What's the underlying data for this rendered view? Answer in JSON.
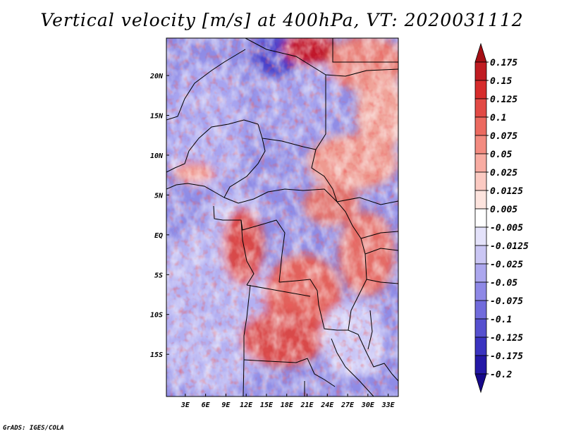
{
  "title": "Vertical velocity [m/s] at 400hPa, VT: 2020031112",
  "credit": "GrADS: IGES/COLA",
  "map": {
    "lat_labels": [
      "20N",
      "15N",
      "10N",
      "5N",
      "EQ",
      "5S",
      "10S",
      "15S"
    ],
    "lat_values": [
      20,
      15,
      10,
      5,
      0,
      -5,
      -10,
      -15
    ],
    "lon_labels": [
      "3E",
      "6E",
      "9E",
      "12E",
      "15E",
      "18E",
      "21E",
      "24E",
      "27E",
      "30E",
      "33E"
    ],
    "lon_values": [
      3,
      6,
      9,
      12,
      15,
      18,
      21,
      24,
      27,
      30,
      33
    ]
  },
  "colorbar": {
    "labels": [
      "0.175",
      "0.15",
      "0.125",
      "0.1",
      "0.075",
      "0.05",
      "0.025",
      "0.0125",
      "0.005",
      "-0.005",
      "-0.0125",
      "-0.025",
      "-0.05",
      "-0.075",
      "-0.1",
      "-0.125",
      "-0.175",
      "-0.2"
    ],
    "colors": [
      "#a50f15",
      "#c01c22",
      "#d62c2c",
      "#e24a45",
      "#ec6a60",
      "#f38b80",
      "#f8aca2",
      "#fbcac2",
      "#fde4de",
      "#ffffff",
      "#e4e2fa",
      "#cac6f4",
      "#aca7ee",
      "#8e88e6",
      "#716bdc",
      "#5650cf",
      "#3a33c0",
      "#2418a6",
      "#16088a"
    ]
  }
}
